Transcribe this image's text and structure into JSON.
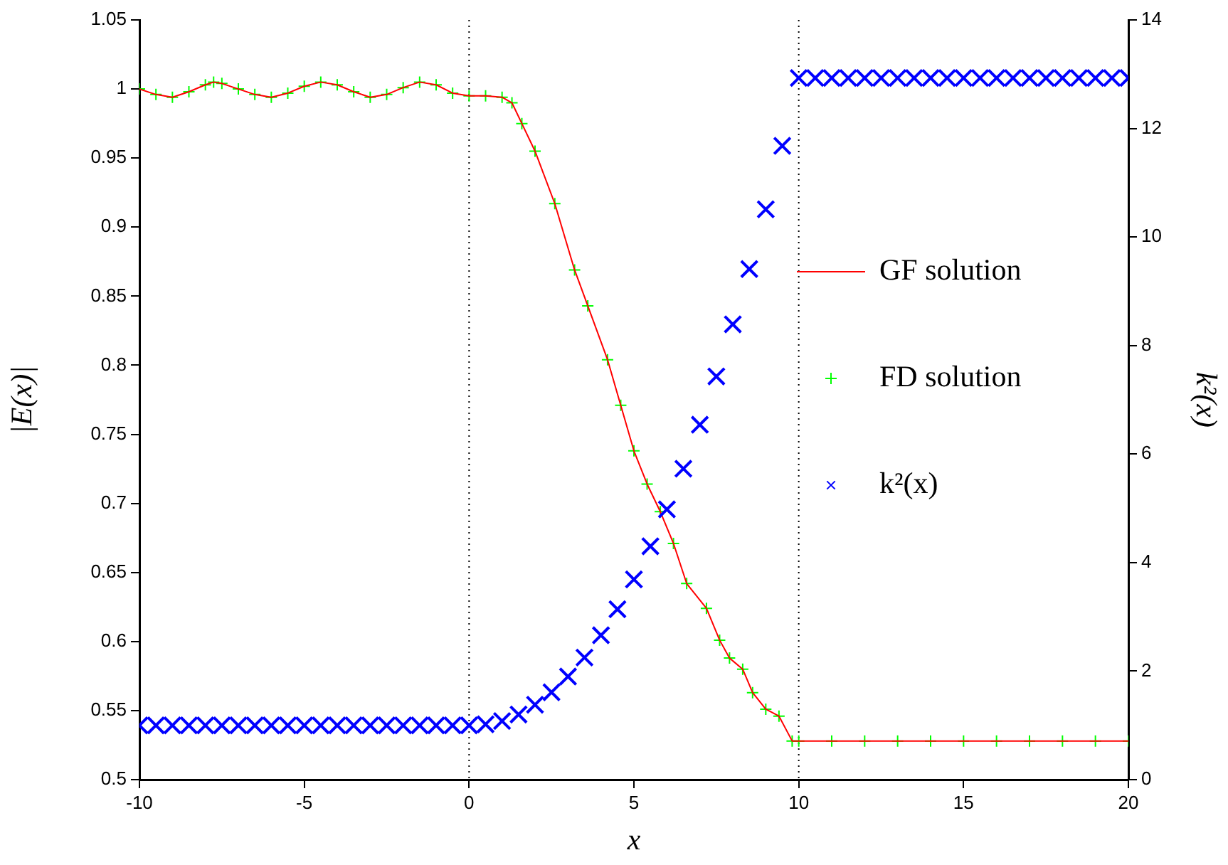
{
  "chart_data": {
    "type": "line",
    "xlabel": "x",
    "ylabel": "|E(x)|",
    "y2label": "k²(x)",
    "xlim": [
      -10,
      20
    ],
    "xticks": [
      -10,
      -5,
      0,
      5,
      10,
      15,
      20
    ],
    "ylim": [
      0.5,
      1.05
    ],
    "yticks": [
      0.5,
      0.55,
      0.6,
      0.65,
      0.7,
      0.75,
      0.8,
      0.85,
      0.9,
      0.95,
      1,
      1.05
    ],
    "y2lim": [
      0,
      14
    ],
    "y2ticks": [
      0,
      2,
      4,
      6,
      8,
      10,
      12,
      14
    ],
    "legend": "right",
    "grid": false,
    "ref_lines": [
      {
        "axis": "x",
        "value": 0,
        "color": "#000000",
        "line_style": "dotted"
      },
      {
        "axis": "x",
        "value": 10,
        "color": "#000000",
        "line_style": "dotted"
      }
    ],
    "series": [
      {
        "name": "GF solution",
        "color": "#ff0000",
        "marker": "none",
        "x": [
          -10,
          -9.5,
          -9,
          -8.5,
          -8,
          -7.75,
          -7.5,
          -7,
          -6.5,
          -6,
          -5.5,
          -5,
          -4.5,
          -4,
          -3.5,
          -3,
          -2.5,
          -2,
          -1.5,
          -1,
          -0.5,
          0,
          0.5,
          1,
          1.3,
          1.6,
          2,
          2.6,
          3.2,
          3.6,
          4.2,
          4.6,
          5,
          5.4,
          5.8,
          6.2,
          6.6,
          7.2,
          7.6,
          7.9,
          8.3,
          8.6,
          9,
          9.4,
          9.8,
          10,
          11,
          12,
          13,
          14,
          15,
          16,
          17,
          18,
          19,
          20
        ],
        "values": [
          1.0,
          0.996,
          0.994,
          0.998,
          1.003,
          1.005,
          1.004,
          1.0,
          0.996,
          0.994,
          0.997,
          1.002,
          1.005,
          1.003,
          0.998,
          0.994,
          0.996,
          1.001,
          1.005,
          1.003,
          0.997,
          0.995,
          0.995,
          0.994,
          0.99,
          0.975,
          0.955,
          0.917,
          0.869,
          0.843,
          0.804,
          0.771,
          0.738,
          0.714,
          0.694,
          0.671,
          0.642,
          0.624,
          0.601,
          0.588,
          0.58,
          0.563,
          0.551,
          0.546,
          0.528,
          0.528,
          0.528,
          0.528,
          0.528,
          0.528,
          0.528,
          0.528,
          0.528,
          0.528,
          0.528,
          0.528
        ]
      },
      {
        "name": "FD solution",
        "type": "scatter",
        "color": "#00ff00",
        "marker": "cross",
        "x": [
          -10,
          -9.5,
          -9,
          -8.5,
          -8,
          -7.75,
          -7.5,
          -7,
          -6.5,
          -6,
          -5.5,
          -5,
          -4.5,
          -4,
          -3.5,
          -3,
          -2.5,
          -2,
          -1.5,
          -1,
          -0.5,
          0,
          0.5,
          1,
          1.3,
          1.6,
          2,
          2.6,
          3.2,
          3.6,
          4.2,
          4.6,
          5,
          5.4,
          5.8,
          6.2,
          6.6,
          7.2,
          7.6,
          7.9,
          8.3,
          8.6,
          9,
          9.4,
          9.8,
          10,
          11,
          12,
          13,
          14,
          15,
          16,
          17,
          18,
          19,
          20
        ],
        "values": [
          1.0,
          0.996,
          0.994,
          0.998,
          1.003,
          1.005,
          1.004,
          1.0,
          0.996,
          0.994,
          0.997,
          1.002,
          1.005,
          1.003,
          0.998,
          0.994,
          0.996,
          1.001,
          1.005,
          1.003,
          0.997,
          0.995,
          0.995,
          0.994,
          0.99,
          0.975,
          0.955,
          0.917,
          0.869,
          0.843,
          0.804,
          0.771,
          0.738,
          0.714,
          0.694,
          0.671,
          0.642,
          0.624,
          0.601,
          0.588,
          0.58,
          0.563,
          0.551,
          0.546,
          0.528,
          0.528,
          0.528,
          0.528,
          0.528,
          0.528,
          0.528,
          0.528,
          0.528,
          0.528,
          0.528,
          0.528
        ]
      },
      {
        "name": "k²(x)",
        "type": "scatter",
        "axis": "y2",
        "color": "#0000ff",
        "marker": "x",
        "x": [
          -10,
          -9.5,
          -9,
          -8.5,
          -8,
          -7.5,
          -7,
          -6.5,
          -6,
          -5.5,
          -5,
          -4.5,
          -4,
          -3.5,
          -3,
          -2.5,
          -2,
          -1.5,
          -1,
          -0.5,
          0,
          0.5,
          1,
          1.5,
          2,
          2.5,
          3,
          3.5,
          4,
          4.5,
          5,
          5.5,
          6,
          6.5,
          7,
          7.5,
          8,
          8.5,
          9,
          9.5,
          10,
          10.5,
          11,
          11.5,
          12,
          12.5,
          13,
          13.5,
          14,
          14.5,
          15,
          15.5,
          16,
          16.5,
          17,
          17.5,
          18,
          18.5,
          19,
          19.5,
          20
        ],
        "values": [
          1,
          1,
          1,
          1,
          1,
          1,
          1,
          1,
          1,
          1,
          1,
          1,
          1,
          1,
          1,
          1,
          1,
          1,
          1,
          1,
          1,
          1.02,
          1.08,
          1.2,
          1.38,
          1.61,
          1.9,
          2.25,
          2.66,
          3.14,
          3.69,
          4.3,
          4.98,
          5.73,
          6.54,
          7.43,
          8.39,
          9.41,
          10.51,
          11.68,
          12.93,
          12.93,
          12.93,
          12.93,
          12.93,
          12.93,
          12.93,
          12.93,
          12.93,
          12.93,
          12.93,
          12.93,
          12.93,
          12.93,
          12.93,
          12.93,
          12.93,
          12.93,
          12.93,
          12.93,
          12.93
        ]
      }
    ]
  }
}
